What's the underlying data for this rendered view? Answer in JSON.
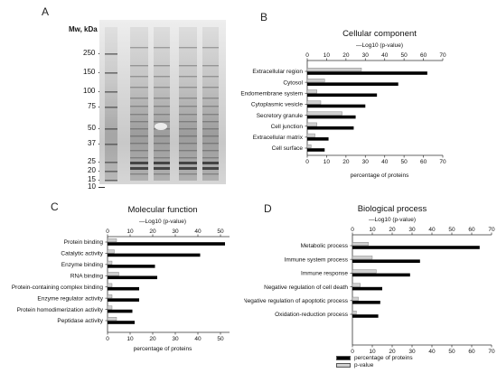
{
  "panels": {
    "a": "A",
    "b": "B",
    "c": "C",
    "d": "D"
  },
  "gel": {
    "title": "Mw, kDa",
    "markers": [
      "250",
      "150",
      "100",
      "75",
      "50",
      "37",
      "25",
      "20",
      "15",
      "10"
    ]
  },
  "legend": {
    "percent": "percentage of proteins",
    "pvalue": "p-value"
  },
  "colors": {
    "percent_bar": "#000000",
    "pvalue_bar": "#cfcfcf"
  },
  "chart_data": [
    {
      "type": "bar",
      "title": "Cellular component",
      "top_axis_label": "—Log10 (p-value)",
      "bottom_axis_label": "percentage of proteins",
      "xlim": [
        0,
        70
      ],
      "ticks": [
        "0",
        "10",
        "20",
        "30",
        "40",
        "50",
        "60",
        "70"
      ],
      "bottom_ticks": [
        "0",
        "10",
        "20",
        "30",
        "40",
        "50",
        "60",
        "70"
      ],
      "categories": [
        "Extracellular region",
        "Cytosol",
        "Endomembrane system",
        "Cytoplasmic vesicle",
        "Secretory granule",
        "Cell junction",
        "Extracellular matrix",
        "Cell surface"
      ],
      "series": [
        {
          "name": "percentage of proteins",
          "values": [
            62,
            47,
            36,
            30,
            25,
            24,
            11,
            9
          ]
        },
        {
          "name": "p-value",
          "values": [
            28,
            9,
            5,
            7,
            18,
            5,
            4,
            2
          ]
        }
      ]
    },
    {
      "type": "bar",
      "title": "Molecular function",
      "top_axis_label": "—Log10 (p-value)",
      "bottom_axis_label": "percentage of proteins",
      "xlim": [
        0,
        54
      ],
      "ticks": [
        "0",
        "10",
        "20",
        "30",
        "40",
        "50"
      ],
      "bottom_ticks": [
        "0",
        "10",
        "20",
        "30",
        "40",
        "50"
      ],
      "categories": [
        "Protein binding",
        "Catalytic activity",
        "Enzyme binding",
        "RNA binding",
        "Protein-containing complex binding",
        "Enzyme regulator activity",
        "Protein homodimerization activity",
        "Peptidase activity"
      ],
      "series": [
        {
          "name": "percentage of proteins",
          "values": [
            52,
            41,
            21,
            22,
            14,
            14,
            11,
            12
          ]
        },
        {
          "name": "p-value",
          "values": [
            4,
            3,
            2,
            5,
            2,
            2,
            2,
            4
          ]
        }
      ]
    },
    {
      "type": "bar",
      "title": "Biological process",
      "top_axis_label": "—Log10 (p-value)",
      "bottom_axis_label": "",
      "xlim": [
        0,
        70
      ],
      "ticks": [
        "0",
        "10",
        "20",
        "30",
        "40",
        "50",
        "60",
        "70"
      ],
      "bottom_ticks": [
        "0",
        "10",
        "20",
        "30",
        "40",
        "50",
        "60",
        "70"
      ],
      "categories": [
        "Metabolic process",
        "Immune system process",
        "Immune response",
        "Negative regulation of cell death",
        "Negative regulation of apoptotic process",
        "Oxidation-reduction process"
      ],
      "series": [
        {
          "name": "percentage of proteins",
          "values": [
            64,
            34,
            29,
            15,
            14,
            13
          ]
        },
        {
          "name": "p-value",
          "values": [
            8,
            10,
            12,
            4,
            3,
            2
          ]
        }
      ]
    }
  ]
}
